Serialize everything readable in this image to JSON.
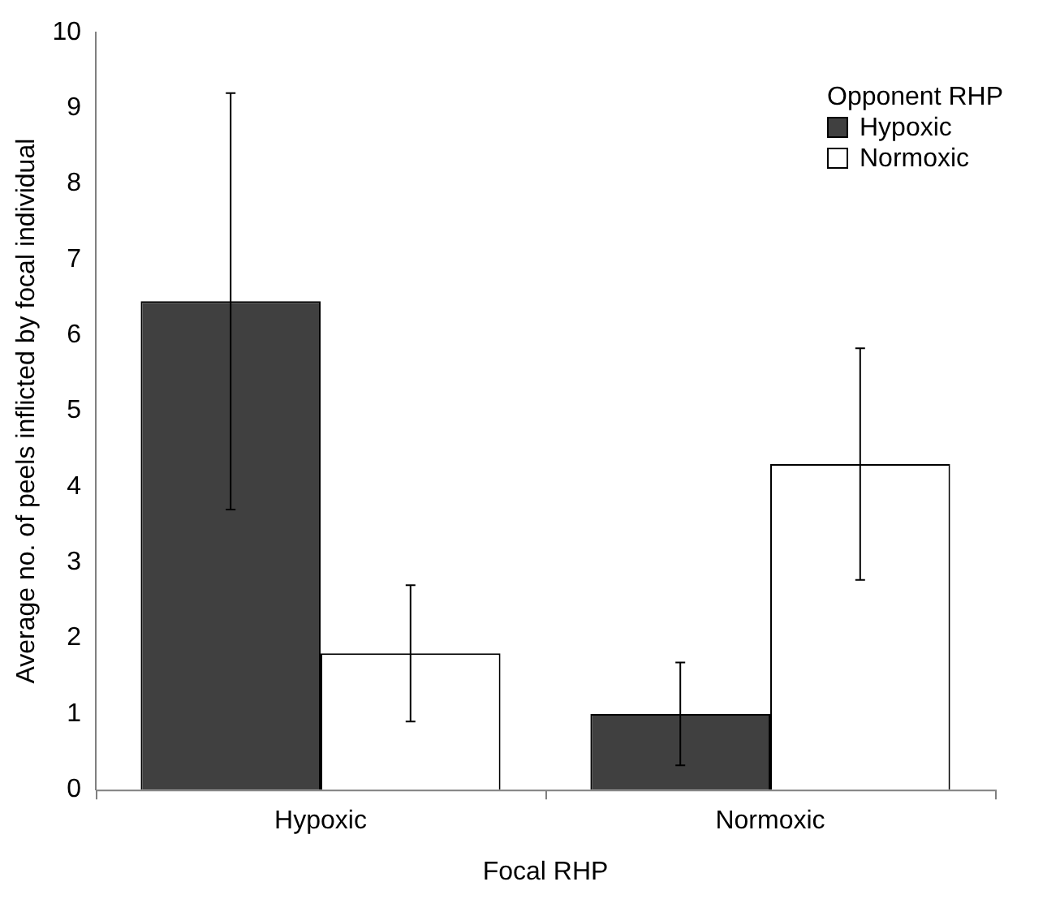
{
  "chart_data": {
    "type": "bar",
    "xlabel": "Focal RHP",
    "ylabel": "Average no. of peels inflicted by focal individual",
    "legend_title": "Opponent RHP",
    "categories": [
      "Hypoxic",
      "Normoxic"
    ],
    "series": [
      {
        "name": "Hypoxic",
        "color": "#404040",
        "values": [
          6.45,
          1.0
        ],
        "errors": [
          2.75,
          0.68
        ]
      },
      {
        "name": "Normoxic",
        "color": "#ffffff",
        "values": [
          1.8,
          4.3
        ],
        "errors": [
          0.9,
          1.53
        ]
      }
    ],
    "ylim": [
      0,
      10
    ],
    "yticks": [
      0,
      1,
      2,
      3,
      4,
      5,
      6,
      7,
      8,
      9,
      10
    ],
    "grid": false,
    "legend": "top right"
  }
}
